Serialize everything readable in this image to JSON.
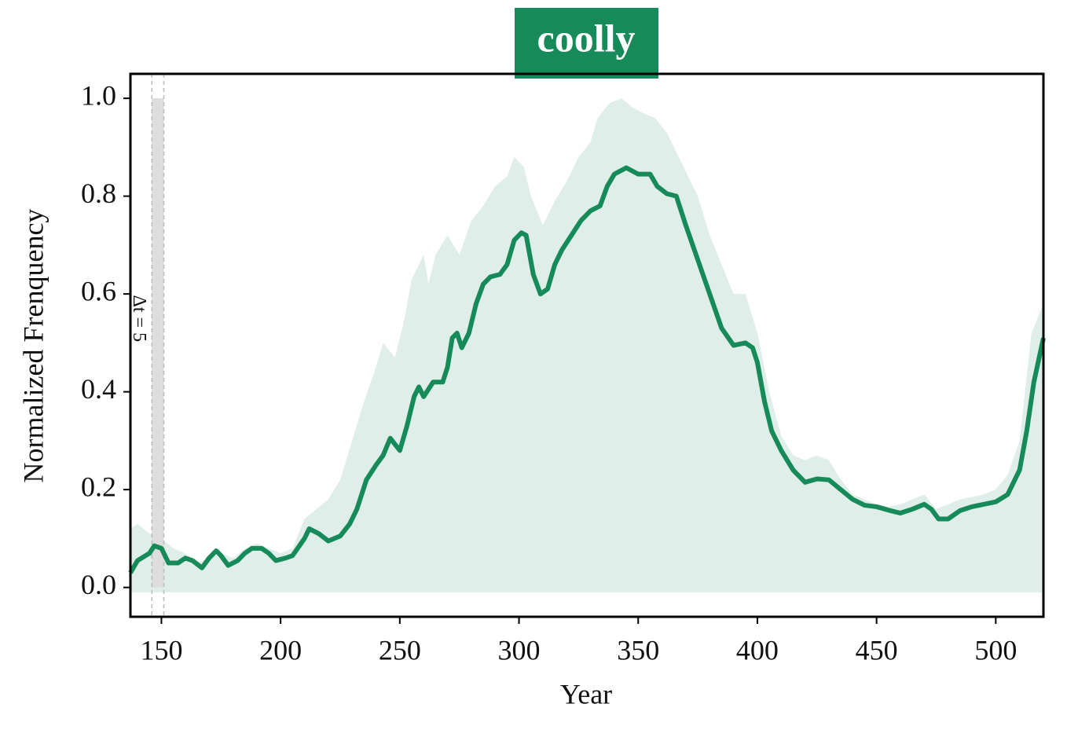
{
  "chart_data": {
    "type": "line",
    "title": "coolly",
    "xlabel": "Year",
    "ylabel": "Normalized Frenquency",
    "color": "#178a5a",
    "x": [
      137,
      140,
      145,
      147,
      150,
      153,
      157,
      160,
      163,
      167,
      170,
      173,
      175,
      178,
      182,
      185,
      188,
      192,
      195,
      198,
      202,
      205,
      210,
      212,
      216,
      220,
      225,
      229,
      232,
      236,
      240,
      243,
      246,
      250,
      253,
      256,
      258,
      260,
      264,
      268,
      270,
      272,
      274,
      276,
      279,
      282,
      285,
      288,
      292,
      295,
      298,
      301,
      303,
      306,
      309,
      312,
      315,
      318,
      322,
      326,
      330,
      334,
      337,
      340,
      345,
      350,
      355,
      358,
      362,
      366,
      370,
      375,
      380,
      385,
      390,
      395,
      398,
      400,
      403,
      406,
      410,
      415,
      420,
      425,
      430,
      435,
      440,
      445,
      450,
      455,
      460,
      465,
      470,
      473,
      476,
      480,
      485,
      490,
      495,
      500,
      505,
      510,
      513,
      516,
      520
    ],
    "values": [
      0.03,
      0.055,
      0.07,
      0.085,
      0.08,
      0.05,
      0.05,
      0.06,
      0.055,
      0.04,
      0.06,
      0.075,
      0.065,
      0.045,
      0.055,
      0.07,
      0.08,
      0.08,
      0.07,
      0.055,
      0.06,
      0.065,
      0.1,
      0.12,
      0.11,
      0.095,
      0.105,
      0.13,
      0.16,
      0.22,
      0.25,
      0.27,
      0.305,
      0.28,
      0.33,
      0.39,
      0.41,
      0.39,
      0.42,
      0.42,
      0.45,
      0.51,
      0.52,
      0.49,
      0.52,
      0.58,
      0.62,
      0.635,
      0.64,
      0.66,
      0.71,
      0.725,
      0.72,
      0.64,
      0.6,
      0.61,
      0.66,
      0.69,
      0.72,
      0.75,
      0.77,
      0.78,
      0.82,
      0.845,
      0.858,
      0.845,
      0.845,
      0.82,
      0.805,
      0.8,
      0.74,
      0.67,
      0.6,
      0.53,
      0.495,
      0.5,
      0.49,
      0.46,
      0.38,
      0.32,
      0.28,
      0.24,
      0.215,
      0.222,
      0.22,
      0.2,
      0.18,
      0.168,
      0.165,
      0.158,
      0.152,
      0.16,
      0.17,
      0.16,
      0.14,
      0.14,
      0.157,
      0.165,
      0.17,
      0.175,
      0.19,
      0.24,
      0.32,
      0.42,
      0.51
    ],
    "band": {
      "color": "#dfeee8",
      "floor": -0.01,
      "x": [
        137,
        140,
        145,
        150,
        155,
        160,
        165,
        170,
        175,
        180,
        185,
        190,
        195,
        200,
        205,
        210,
        215,
        220,
        225,
        230,
        235,
        240,
        243,
        248,
        252,
        255,
        260,
        262,
        265,
        270,
        275,
        280,
        285,
        290,
        295,
        298,
        302,
        305,
        310,
        315,
        320,
        325,
        330,
        333,
        338,
        343,
        348,
        352,
        357,
        362,
        365,
        370,
        375,
        380,
        385,
        390,
        395,
        400,
        405,
        410,
        415,
        420,
        425,
        430,
        435,
        440,
        445,
        450,
        455,
        460,
        465,
        470,
        475,
        480,
        485,
        490,
        495,
        500,
        505,
        510,
        515,
        520
      ],
      "upper": [
        0.12,
        0.13,
        0.11,
        0.1,
        0.08,
        0.07,
        0.05,
        0.06,
        0.07,
        0.06,
        0.08,
        0.09,
        0.08,
        0.07,
        0.08,
        0.14,
        0.16,
        0.18,
        0.22,
        0.3,
        0.38,
        0.45,
        0.5,
        0.47,
        0.55,
        0.63,
        0.68,
        0.62,
        0.68,
        0.72,
        0.68,
        0.75,
        0.78,
        0.82,
        0.84,
        0.88,
        0.86,
        0.8,
        0.74,
        0.79,
        0.83,
        0.88,
        0.91,
        0.96,
        0.99,
        1.0,
        0.98,
        0.97,
        0.96,
        0.93,
        0.9,
        0.85,
        0.8,
        0.72,
        0.66,
        0.6,
        0.6,
        0.52,
        0.4,
        0.31,
        0.27,
        0.26,
        0.27,
        0.26,
        0.22,
        0.19,
        0.18,
        0.17,
        0.165,
        0.17,
        0.18,
        0.19,
        0.16,
        0.17,
        0.18,
        0.185,
        0.19,
        0.2,
        0.23,
        0.3,
        0.52,
        0.58
      ]
    },
    "span": {
      "start": 146,
      "end": 151,
      "ymin": 0,
      "ymax": 1,
      "label": "Δt = 5"
    },
    "xlim": [
      137,
      520
    ],
    "xticks": [
      150,
      200,
      250,
      300,
      350,
      400,
      450,
      500
    ],
    "ylim": [
      -0.06,
      1.05
    ],
    "yticks": [
      {
        "value": 0,
        "label": "0.0"
      },
      {
        "value": 0.2,
        "label": "0.2"
      },
      {
        "value": 0.4,
        "label": "0.4"
      },
      {
        "value": 0.6,
        "label": "0.6"
      },
      {
        "value": 0.8,
        "label": "0.8"
      },
      {
        "value": 1,
        "label": "1.0"
      }
    ]
  }
}
